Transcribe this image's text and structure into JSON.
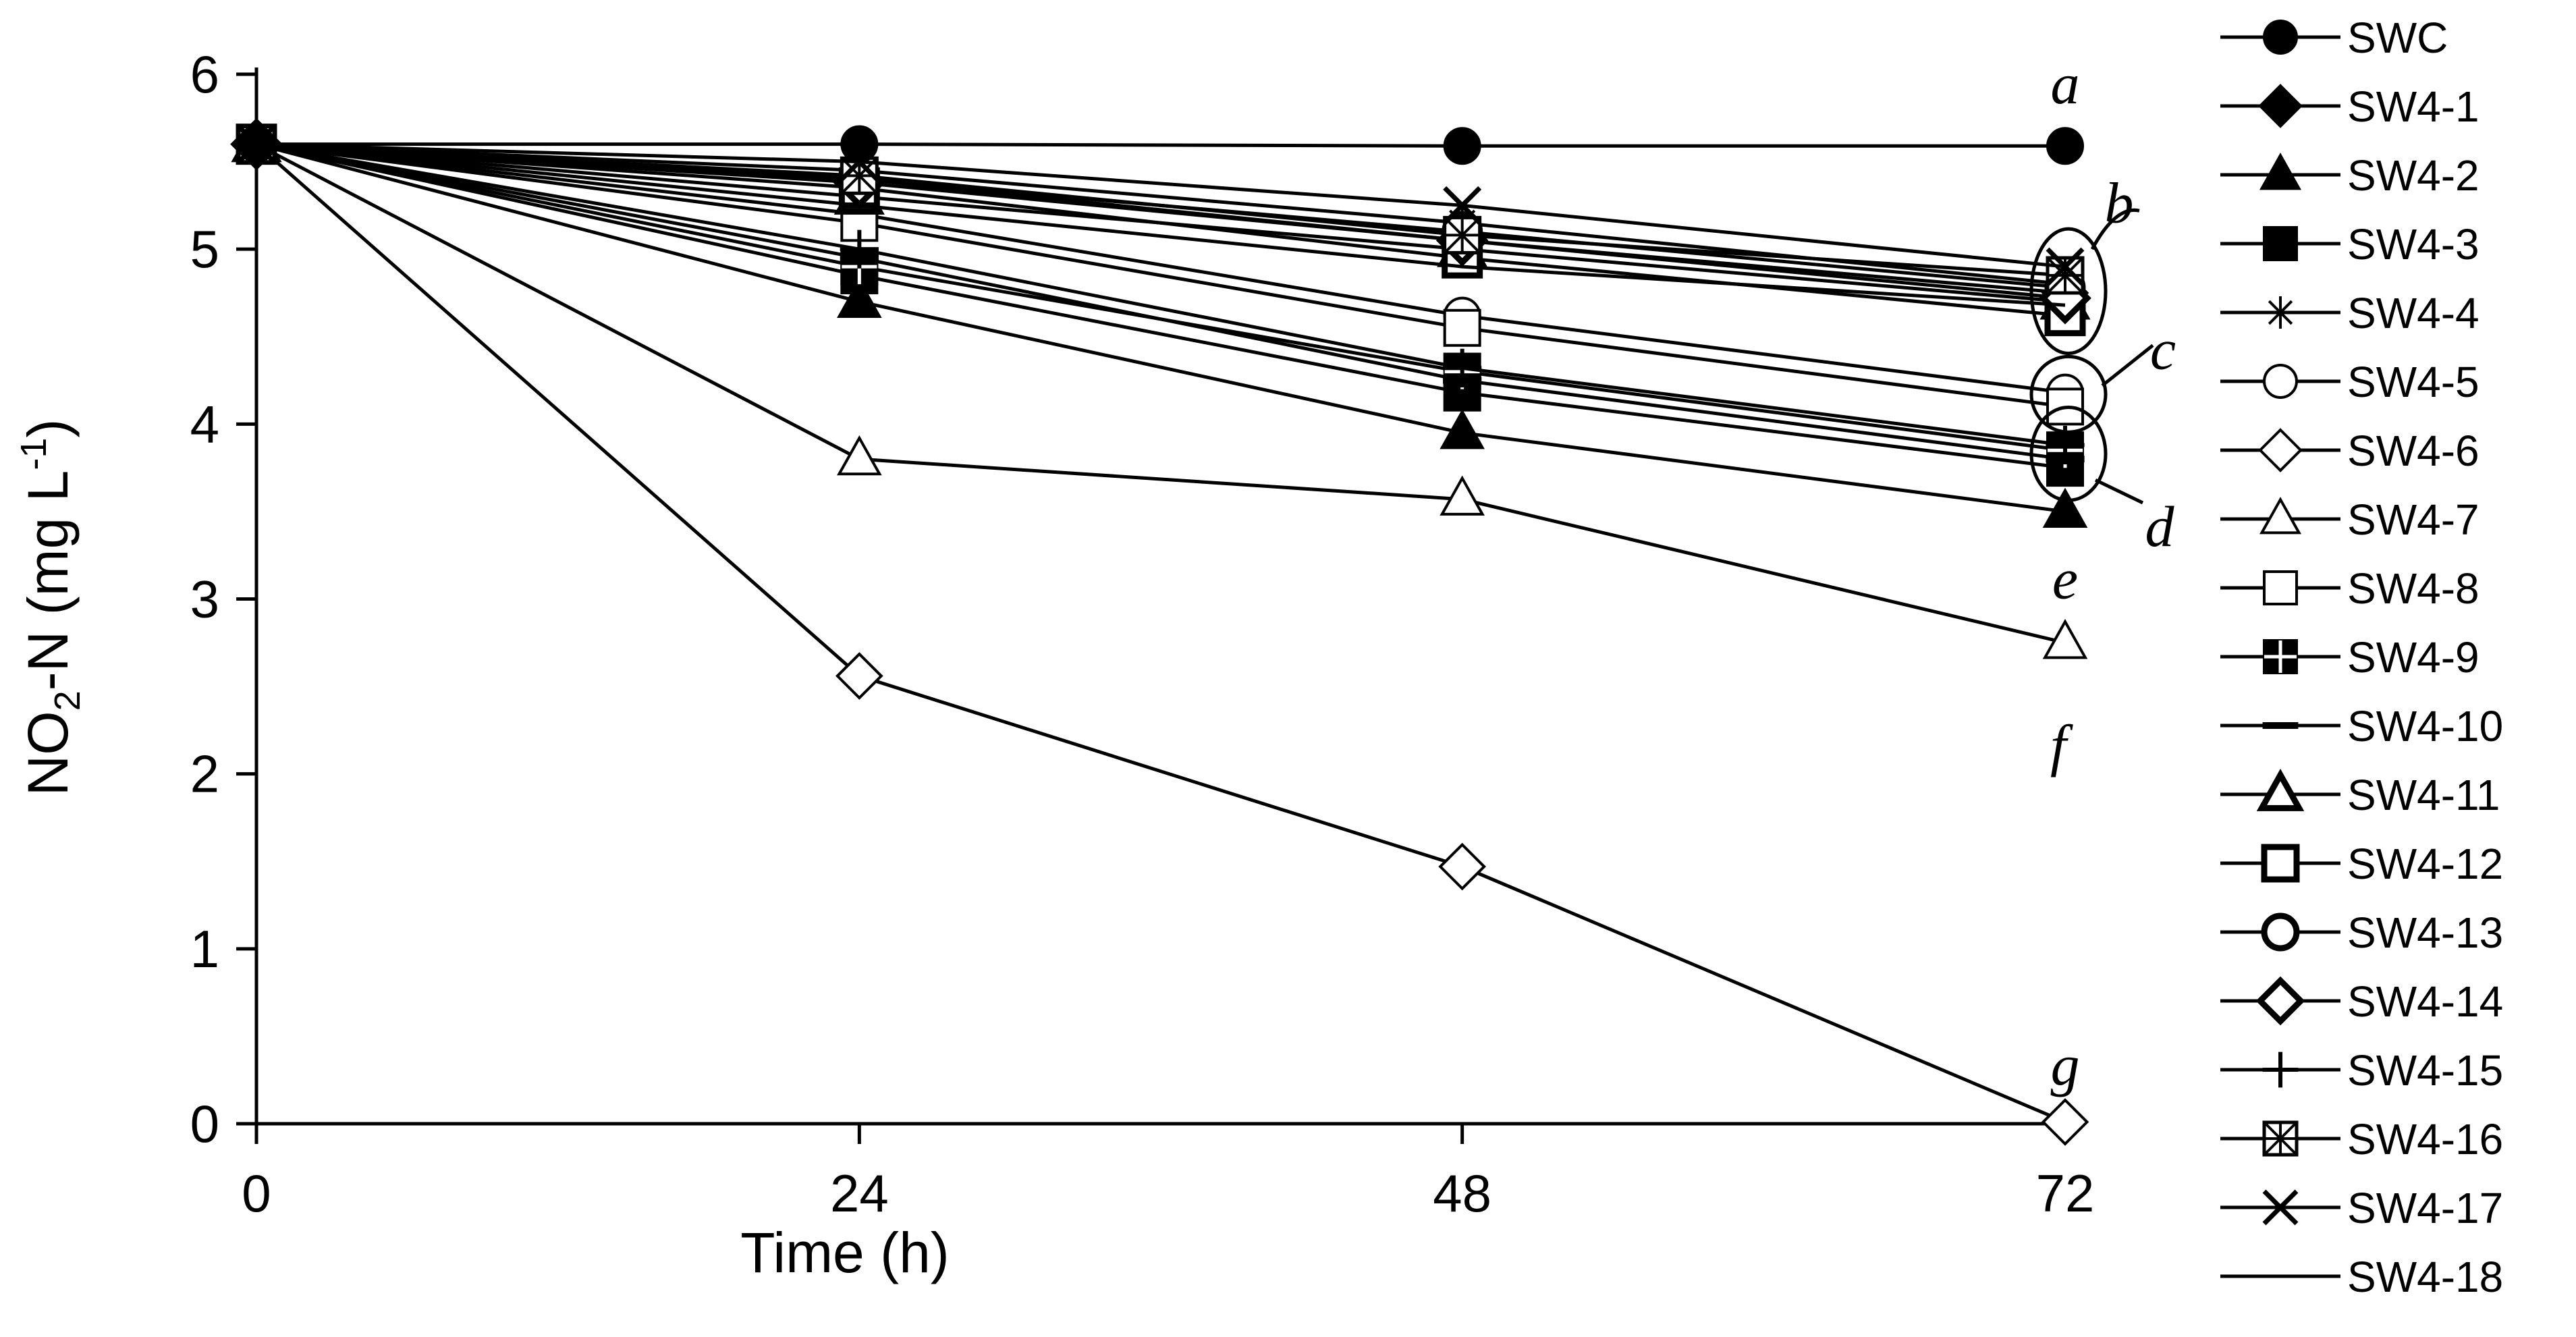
{
  "chart_data": {
    "type": "line",
    "title": "",
    "xlabel": "Time (h)",
    "ylabel_main": "NO",
    "ylabel_sub": "2",
    "ylabel_mid": "-N (mg L",
    "ylabel_sup": "-1",
    "ylabel_end": ")",
    "x": [
      0,
      24,
      48,
      72
    ],
    "x_ticks": [
      "0",
      "24",
      "48",
      "72"
    ],
    "y_ticks": [
      "0",
      "1",
      "2",
      "3",
      "4",
      "5",
      "6"
    ],
    "xlim": [
      0,
      72
    ],
    "ylim": [
      0,
      6
    ],
    "grid": false,
    "legend_position": "right",
    "series": [
      {
        "name": "SWC",
        "marker": "circle",
        "fill": "black",
        "values": [
          5.6,
          5.6,
          5.59,
          5.59
        ]
      },
      {
        "name": "SW4-1",
        "marker": "diamond",
        "fill": "black",
        "values": [
          5.6,
          5.4,
          5.05,
          4.75
        ]
      },
      {
        "name": "SW4-2",
        "marker": "triangle",
        "fill": "black",
        "values": [
          5.6,
          4.7,
          3.95,
          3.5
        ]
      },
      {
        "name": "SW4-3",
        "marker": "square",
        "fill": "black",
        "values": [
          5.6,
          4.85,
          4.18,
          3.75
        ]
      },
      {
        "name": "SW4-4",
        "marker": "star",
        "fill": "none",
        "values": [
          5.6,
          5.45,
          5.15,
          4.8
        ]
      },
      {
        "name": "SW4-5",
        "marker": "circle",
        "fill": "white",
        "values": [
          5.6,
          5.2,
          4.62,
          4.18
        ]
      },
      {
        "name": "SW4-6",
        "marker": "diamond",
        "fill": "white",
        "values": [
          5.6,
          2.56,
          1.47,
          0.01
        ]
      },
      {
        "name": "SW4-7",
        "marker": "triangle",
        "fill": "white",
        "values": [
          5.6,
          3.8,
          3.57,
          2.75
        ]
      },
      {
        "name": "SW4-8",
        "marker": "square",
        "fill": "white",
        "values": [
          5.6,
          5.15,
          4.55,
          4.1
        ]
      },
      {
        "name": "SW4-9",
        "marker": "square-plus",
        "fill": "black",
        "values": [
          5.6,
          4.9,
          4.3,
          3.85
        ]
      },
      {
        "name": "SW4-10",
        "marker": "dash",
        "fill": "black",
        "values": [
          5.6,
          4.95,
          4.25,
          3.8
        ]
      },
      {
        "name": "SW4-11",
        "marker": "triangle-thick",
        "fill": "white",
        "values": [
          5.6,
          5.3,
          5.0,
          4.7
        ]
      },
      {
        "name": "SW4-12",
        "marker": "square-thick",
        "fill": "white",
        "values": [
          5.6,
          5.35,
          4.95,
          4.62
        ]
      },
      {
        "name": "SW4-13",
        "marker": "circle-thick",
        "fill": "white",
        "values": [
          5.6,
          5.4,
          5.1,
          4.78
        ]
      },
      {
        "name": "SW4-14",
        "marker": "diamond-thick",
        "fill": "white",
        "values": [
          5.6,
          5.38,
          5.05,
          4.72
        ]
      },
      {
        "name": "SW4-15",
        "marker": "plus",
        "fill": "none",
        "values": [
          5.6,
          5.0,
          4.32,
          3.88
        ]
      },
      {
        "name": "SW4-16",
        "marker": "square-x",
        "fill": "white",
        "values": [
          5.6,
          5.42,
          5.08,
          4.85
        ]
      },
      {
        "name": "SW4-17",
        "marker": "x",
        "fill": "none",
        "values": [
          5.6,
          5.5,
          5.25,
          4.9
        ]
      },
      {
        "name": "SW4-18",
        "marker": "none",
        "fill": "none",
        "values": [
          5.6,
          5.25,
          4.9,
          4.68
        ]
      }
    ],
    "annotations": [
      {
        "text": "a",
        "x": 72,
        "y": 5.93
      },
      {
        "text": "b",
        "x": 72,
        "y": 5.25
      },
      {
        "text": "c",
        "x": 72,
        "y": 4.45
      },
      {
        "text": "d",
        "x": 72,
        "y": 3.4
      },
      {
        "text": "e",
        "x": 72,
        "y": 3.1
      },
      {
        "text": "f",
        "x": 72,
        "y": 2.15
      },
      {
        "text": "g",
        "x": 72,
        "y": 0.32
      }
    ],
    "groupings": [
      {
        "label": "b",
        "x": 72,
        "y_center": 4.76,
        "y_half_height": 0.24
      },
      {
        "label": "c",
        "x": 72,
        "y_center": 4.17,
        "y_half_height": 0.1
      },
      {
        "label": "d",
        "x": 72,
        "y_center": 3.83,
        "y_half_height": 0.15
      }
    ]
  }
}
